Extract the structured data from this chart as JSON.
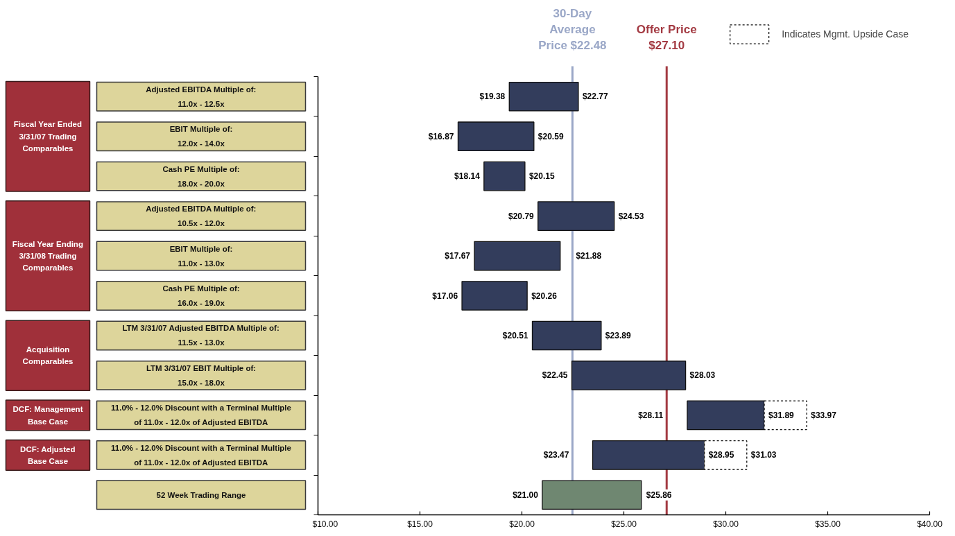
{
  "chart_data": {
    "type": "bar",
    "orientation": "horizontal",
    "categories": [
      "Adjusted EBITDA Multiple of:\n11.0x - 12.5x",
      "EBIT Multiple of:\n12.0x - 14.0x",
      "Cash PE Multiple of:\n18.0x - 20.0x",
      "Adjusted EBITDA Multiple of:\n10.5x - 12.0x",
      "EBIT Multiple of:\n11.0x - 13.0x",
      "Cash PE Multiple of:\n16.0x - 19.0x",
      "LTM 3/31/07 Adjusted EBITDA Multiple of:\n11.5x - 13.0x",
      "LTM 3/31/07 EBIT Multiple of:\n15.0x - 18.0x",
      "11.0% - 12.0% Discount with a Terminal Multiple\nof 11.0x - 12.0x of Adjusted EBITDA",
      "11.0% - 12.0% Discount with a Terminal Multiple\nof 11.0x - 12.0x of Adjusted EBITDA",
      "52 Week Trading Range"
    ],
    "series": [
      {
        "colors": [
          "#333d5c",
          "#333d5c",
          "#333d5c",
          "#333d5c",
          "#333d5c",
          "#333d5c",
          "#333d5c",
          "#333d5c",
          "#333d5c",
          "#333d5c",
          "#6f8771"
        ],
        "base": [
          19.38,
          16.87,
          18.14,
          20.79,
          17.67,
          17.06,
          20.51,
          22.45,
          28.11,
          23.47,
          21.0
        ],
        "values": [
          3.39,
          3.72,
          2.01,
          3.74,
          4.21,
          3.2,
          3.38,
          5.58,
          3.78,
          5.48,
          4.86
        ],
        "value_labels": [
          "$22.77",
          "$20.59",
          "$20.15",
          "$24.53",
          "$21.88",
          "$20.26",
          "$23.89",
          "$28.03",
          "$31.89",
          "$28.95",
          "$25.86"
        ]
      },
      {
        "name": "Indicates Mgmt. Upside Case",
        "color": "#ffffff",
        "line_style": "dashed",
        "base": [
          null,
          null,
          null,
          null,
          null,
          null,
          null,
          null,
          31.89,
          28.95,
          null
        ],
        "values": [
          null,
          null,
          null,
          null,
          null,
          null,
          null,
          null,
          2.08,
          2.08,
          null
        ],
        "value_labels": [
          null,
          null,
          null,
          null,
          null,
          null,
          null,
          null,
          "$33.97",
          "$31.03",
          null
        ]
      }
    ],
    "xlim": [
      10,
      40
    ],
    "xticks": [
      {
        "value": 10,
        "label": "$10.00"
      },
      {
        "value": 15,
        "label": "$15.00"
      },
      {
        "value": 20,
        "label": "$20.00"
      },
      {
        "value": 25,
        "label": "$25.00"
      },
      {
        "value": 30,
        "label": "$30.00"
      },
      {
        "value": 35,
        "label": "$35.00"
      },
      {
        "value": 40,
        "label": "$40.00"
      }
    ],
    "ref_lines": [
      {
        "axis": "x",
        "value": 22.48,
        "label": "30-Day\nAverage\nPrice $22.48",
        "color": "#9aa7c7"
      },
      {
        "axis": "x",
        "value": 27.1,
        "label": "Offer Price\n$27.10",
        "color": "#a33a42"
      }
    ],
    "annotations": [
      "Fiscal Year Ended\n3/31/07 Trading\nComparables",
      "Fiscal Year Ending\n3/31/08 Trading\nComparables",
      "Acquisition\nComparables",
      "DCF: Management\nBase Case",
      "DCF: Adjusted\nBase Case",
      {
        "text": "$19.38",
        "x": 19.38,
        "y": "Adjusted EBITDA Multiple of:\n11.0x - 12.5x"
      },
      {
        "text": "$16.87",
        "x": 16.87,
        "y": "EBIT Multiple of:\n12.0x - 14.0x"
      },
      {
        "text": "$18.14",
        "x": 18.14,
        "y": "Cash PE Multiple of:\n18.0x - 20.0x"
      },
      {
        "text": "$20.79",
        "x": 20.79,
        "y": "Adjusted EBITDA Multiple of:\n10.5x - 12.0x"
      },
      {
        "text": "$17.67",
        "x": 17.67,
        "y": "EBIT Multiple of:\n11.0x - 13.0x"
      },
      {
        "text": "$17.06",
        "x": 17.06,
        "y": "Cash PE Multiple of:\n16.0x - 19.0x"
      },
      {
        "text": "$20.51",
        "x": 20.51,
        "y": "LTM 3/31/07 Adjusted EBITDA Multiple of:\n11.5x - 13.0x"
      },
      {
        "text": "$22.45",
        "x": 22.45,
        "y": "LTM 3/31/07 EBIT Multiple of:\n15.0x - 18.0x"
      },
      {
        "text": "$28.11",
        "x": 28.11,
        "y": "11.0% - 12.0% Discount with a Terminal Multiple\nof 11.0x - 12.0x of Adjusted EBITDA"
      },
      {
        "text": "$23.47",
        "x": 23.47
      },
      {
        "text": "$21.00",
        "x": 21.0,
        "y": "52 Week Trading Range"
      }
    ],
    "legend": "top right"
  }
}
